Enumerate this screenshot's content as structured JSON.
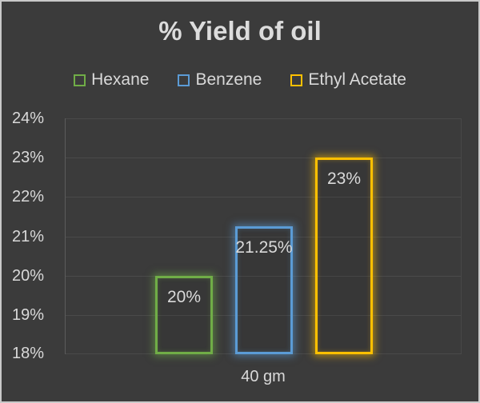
{
  "chart_data": {
    "type": "bar",
    "title": "% Yield of oil",
    "categories": [
      "40 gm"
    ],
    "series": [
      {
        "name": "Hexane",
        "values": [
          20
        ],
        "data_labels": [
          "20%"
        ],
        "color": "#70AD47"
      },
      {
        "name": "Benzene",
        "values": [
          21.25
        ],
        "data_labels": [
          "21.25%"
        ],
        "color": "#5B9BD5"
      },
      {
        "name": "Ethyl Acetate",
        "values": [
          23
        ],
        "data_labels": [
          "23%"
        ],
        "color": "#FFC000"
      }
    ],
    "xlabel": "",
    "ylabel": "",
    "ylim": [
      18,
      24
    ],
    "ytick_labels": [
      "18%",
      "19%",
      "20%",
      "21%",
      "22%",
      "23%",
      "24%"
    ],
    "grid": true,
    "legend_position": "top",
    "bar_style": "hollow-outline-with-glow"
  },
  "theme": {
    "background": "#3B3B3B",
    "frame_border": "#C9C9C9",
    "text": "#D9D9D9",
    "gridline": "#4A4A4A",
    "axis_line": "#5C5C5C"
  }
}
